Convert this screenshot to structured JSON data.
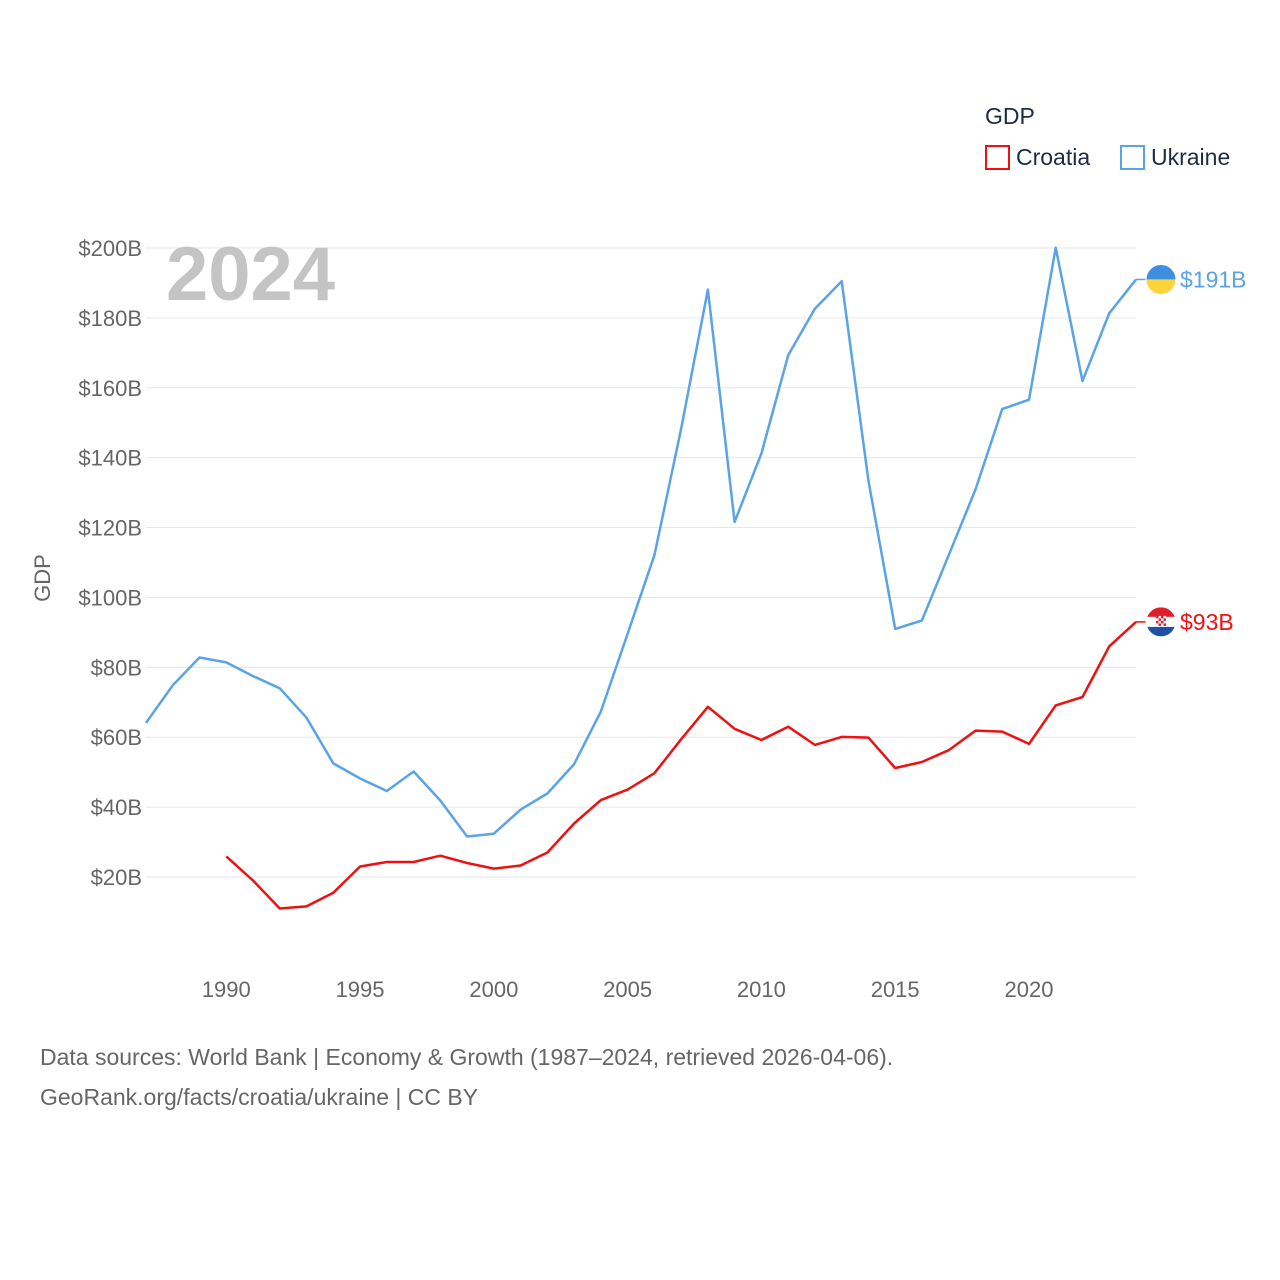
{
  "chart_data": {
    "type": "line",
    "title": "GDP",
    "ylabel": "GDP",
    "xlabel": "",
    "year_label": "2024",
    "xlim": [
      1987,
      2024
    ],
    "ylim": [
      0,
      200
    ],
    "x_ticks": [
      1990,
      1995,
      2000,
      2005,
      2010,
      2015,
      2020
    ],
    "x_tick_labels": [
      "1990",
      "1995",
      "2000",
      "2005",
      "2010",
      "2015",
      "2020"
    ],
    "y_ticks": [
      20,
      40,
      60,
      80,
      100,
      120,
      140,
      160,
      180,
      200
    ],
    "y_tick_labels": [
      "$20B",
      "$40B",
      "$60B",
      "$80B",
      "$100B",
      "$120B",
      "$140B",
      "$160B",
      "$180B",
      "$200B"
    ],
    "legend": {
      "title": "GDP",
      "placement": "top-right"
    },
    "series": [
      {
        "name": "Croatia",
        "color": "#ee1111",
        "end_label": "$93B",
        "flag": "croatia-flag-icon",
        "x": [
          1990,
          1991,
          1992,
          1993,
          1994,
          1995,
          1996,
          1997,
          1998,
          1999,
          2000,
          2001,
          2002,
          2003,
          2004,
          2005,
          2006,
          2007,
          2008,
          2009,
          2010,
          2011,
          2012,
          2013,
          2014,
          2015,
          2016,
          2017,
          2018,
          2019,
          2020,
          2021,
          2022,
          2023,
          2024
        ],
        "values": [
          25.9,
          19.0,
          11.0,
          11.6,
          15.5,
          23.0,
          24.3,
          24.3,
          26.1,
          24.0,
          22.4,
          23.3,
          27.0,
          35.3,
          42.0,
          45.0,
          49.7,
          59.4,
          68.7,
          62.4,
          59.2,
          63.0,
          57.8,
          60.1,
          59.9,
          51.2,
          52.9,
          56.3,
          61.9,
          61.6,
          58.1,
          69.1,
          71.5,
          86.0,
          93.0
        ]
      },
      {
        "name": "Ukraine",
        "color": "#5aa3e6",
        "end_label": "$191B",
        "flag": "ukraine-flag-icon",
        "x": [
          1987,
          1988,
          1989,
          1990,
          1991,
          1992,
          1993,
          1994,
          1995,
          1996,
          1997,
          1998,
          1999,
          2000,
          2001,
          2002,
          2003,
          2004,
          2005,
          2006,
          2007,
          2008,
          2009,
          2010,
          2011,
          2012,
          2013,
          2014,
          2015,
          2016,
          2017,
          2018,
          2019,
          2020,
          2021,
          2022,
          2023,
          2024
        ],
        "values": [
          64.1,
          74.9,
          82.8,
          81.4,
          77.5,
          74.0,
          65.6,
          52.5,
          48.2,
          44.6,
          50.2,
          41.9,
          31.6,
          32.4,
          39.3,
          43.9,
          52.3,
          67.4,
          89.6,
          112.1,
          148.2,
          188.1,
          121.6,
          141.2,
          169.3,
          182.6,
          190.5,
          133.5,
          91.0,
          93.4,
          112.1,
          130.9,
          153.9,
          156.6,
          200.1,
          161.9,
          181.3,
          191.0
        ]
      }
    ]
  },
  "footer": {
    "sources": "Data sources: World Bank | Economy & Growth (1987–2024, retrieved 2026-04-06).",
    "link": "GeoRank.org/facts/croatia/ukraine | CC BY"
  }
}
